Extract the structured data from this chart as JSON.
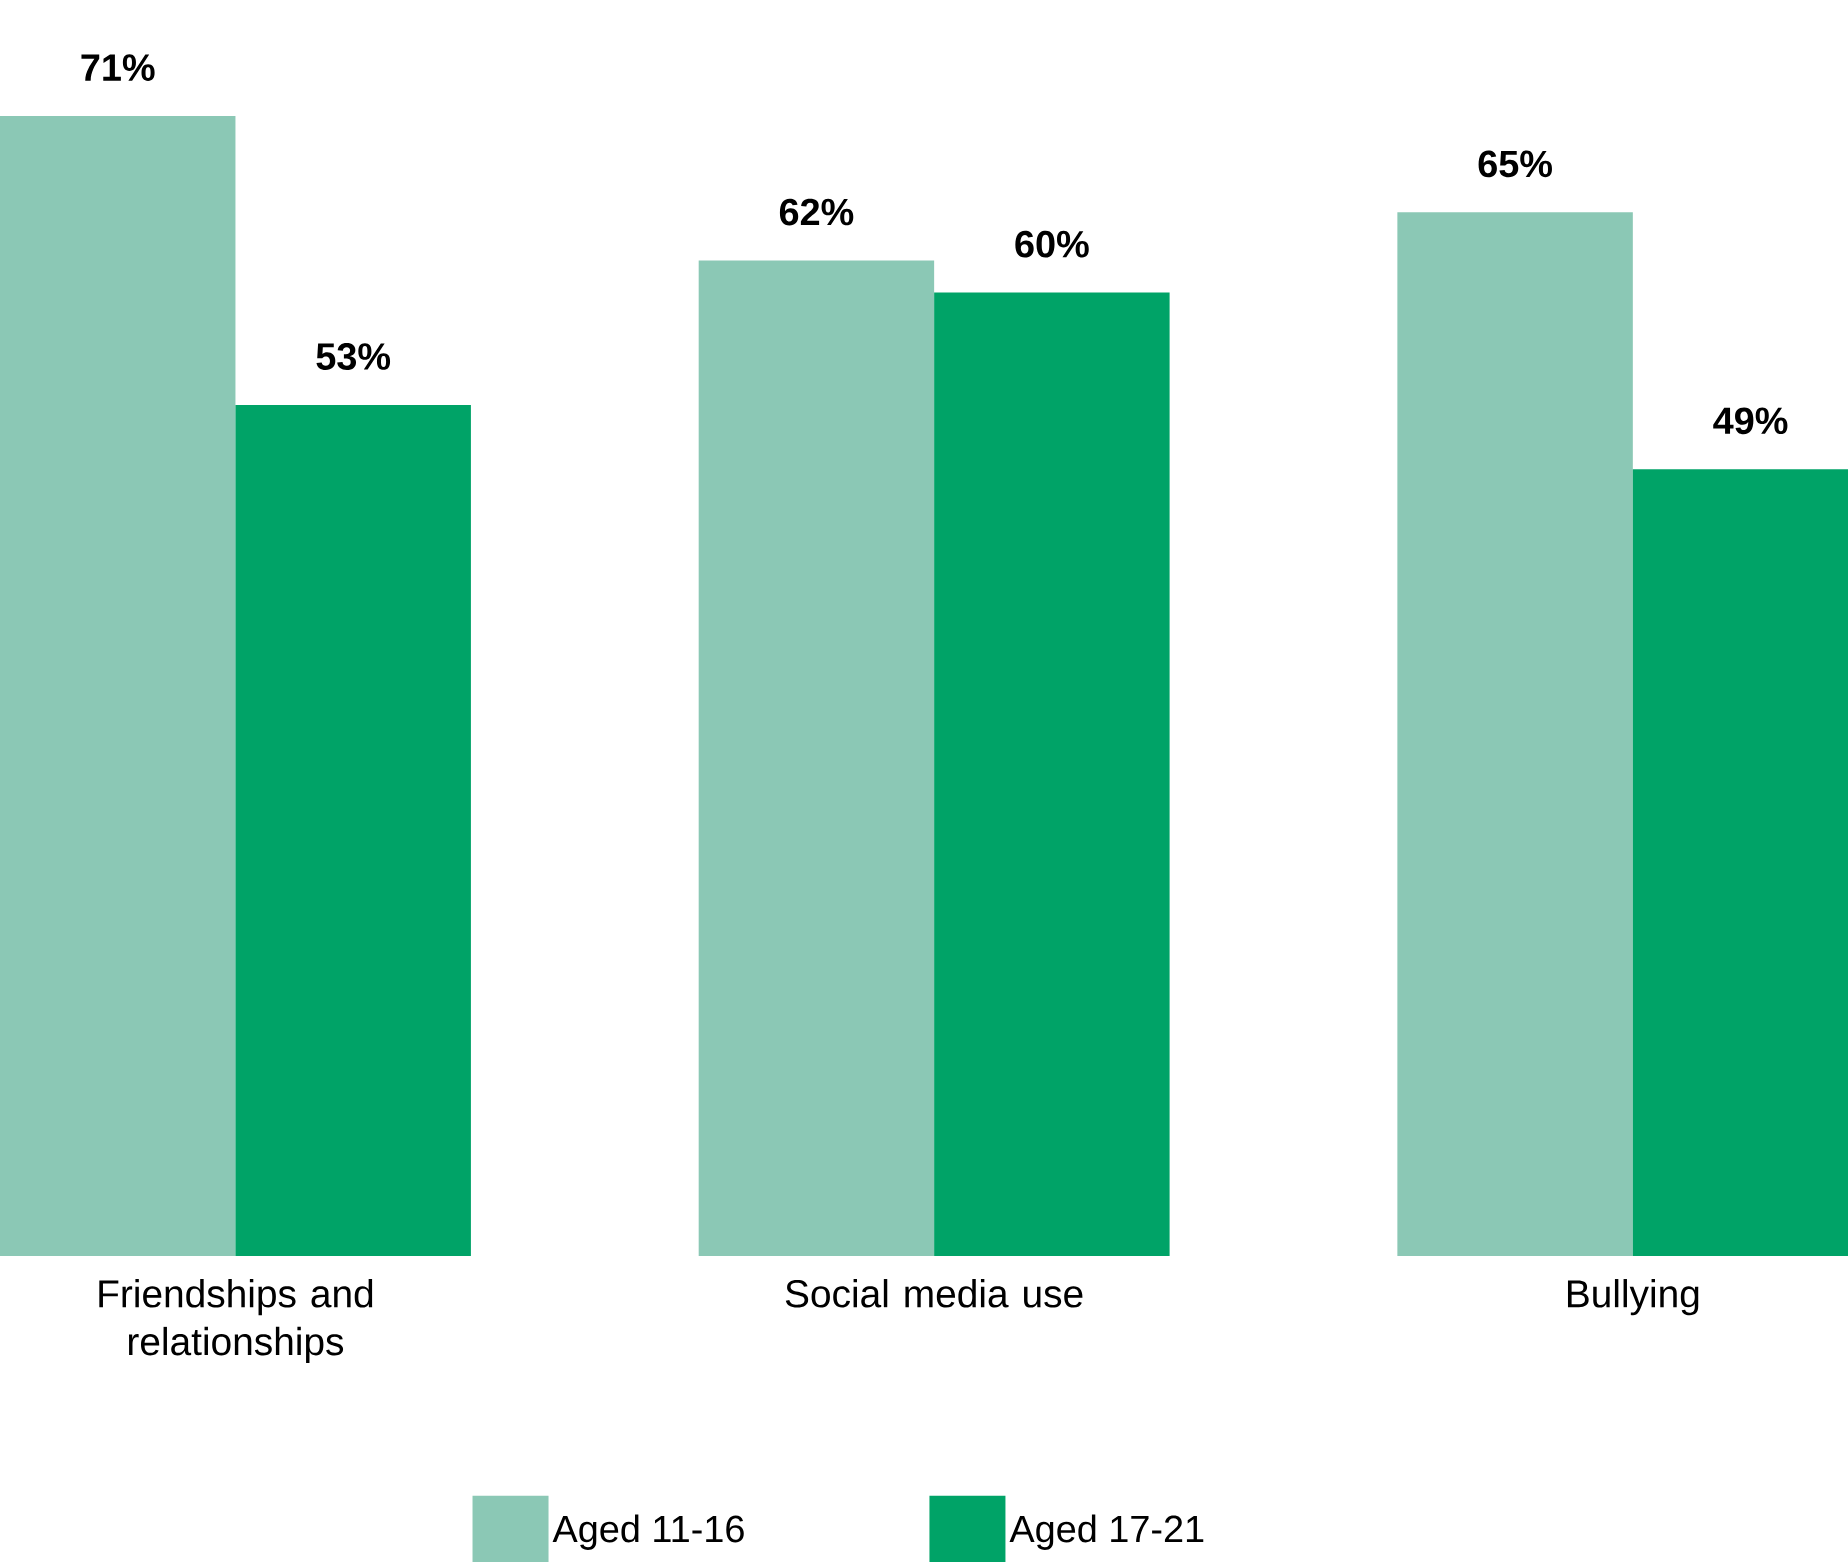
{
  "chart_data": {
    "type": "bar",
    "categories": [
      "Friendships and relationships",
      "Social media use",
      "Bullying"
    ],
    "series": [
      {
        "name": "Aged 11-16",
        "color": "#8bc8b5",
        "values": [
          71,
          62,
          65
        ],
        "value_labels": [
          "71%",
          "62%",
          "65%"
        ]
      },
      {
        "name": "Aged 17-21",
        "color": "#00a367",
        "values": [
          53,
          60,
          49
        ],
        "value_labels": [
          "53%",
          "60%",
          "49%"
        ]
      }
    ],
    "legend": "bottom"
  }
}
